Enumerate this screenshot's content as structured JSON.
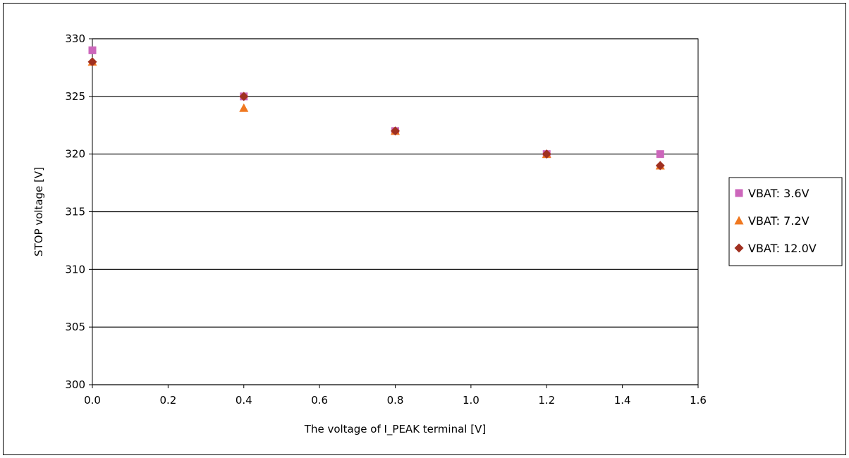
{
  "chart_data": {
    "type": "scatter",
    "title": "",
    "xlabel": "The voltage of I_PEAK terminal [V]",
    "ylabel": "STOP voltage [V]",
    "xlim": [
      0,
      1.6
    ],
    "ylim": [
      300,
      330
    ],
    "x_ticks": [
      0.0,
      0.2,
      0.4,
      0.6,
      0.8,
      1.0,
      1.2,
      1.4,
      1.6
    ],
    "x_tick_labels": [
      "0.0",
      "0.2",
      "0.4",
      "0.6",
      "0.8",
      "1.0",
      "1.2",
      "1.4",
      "1.6"
    ],
    "y_ticks": [
      300,
      305,
      310,
      315,
      320,
      325,
      330
    ],
    "y_tick_labels": [
      "300",
      "305",
      "310",
      "315",
      "320",
      "325",
      "330"
    ],
    "grid": "horizontal",
    "legend_position": "right",
    "series": [
      {
        "name": "VBAT: 3.6V",
        "marker": "square",
        "color": "#cc66bb",
        "x": [
          0.0,
          0.4,
          0.8,
          1.2,
          1.5
        ],
        "y": [
          329,
          325,
          322,
          320,
          320
        ]
      },
      {
        "name": "VBAT: 7.2V",
        "marker": "triangle",
        "color": "#f07820",
        "x": [
          0.0,
          0.4,
          0.8,
          1.2,
          1.5
        ],
        "y": [
          328,
          324,
          322,
          320,
          319
        ]
      },
      {
        "name": "VBAT: 12.0V",
        "marker": "diamond",
        "color": "#a03020",
        "x": [
          0.0,
          0.4,
          0.8,
          1.2,
          1.5
        ],
        "y": [
          328,
          325,
          322,
          320,
          319
        ]
      }
    ]
  }
}
